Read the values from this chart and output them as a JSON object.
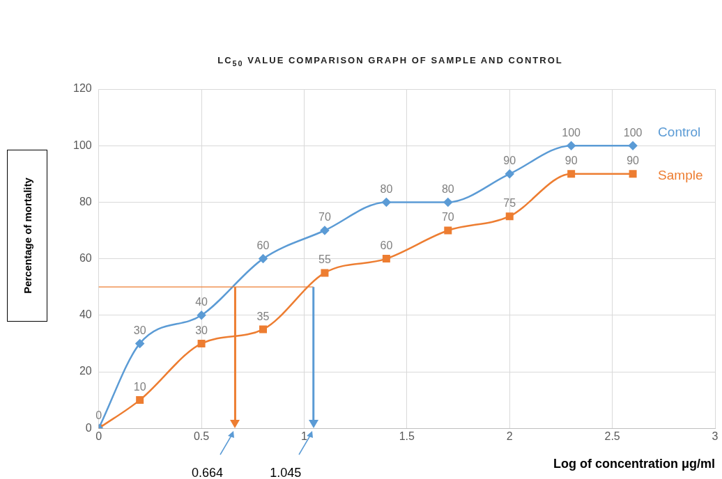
{
  "chart_data": {
    "type": "line",
    "title": "LC$_{50}$ VALUE COMPARISON GRAPH OF SAMPLE AND CONTROL",
    "xlabel": "Log of concentration μg/ml",
    "ylabel": "Percentage of mortality",
    "x": [
      0,
      0.2,
      0.5,
      0.8,
      1.1,
      1.4,
      1.7,
      2.0,
      2.3,
      2.6
    ],
    "series": [
      {
        "name": "Control",
        "color": "#5b9bd5",
        "marker": "diamond",
        "values": [
          0,
          30,
          40,
          60,
          70,
          80,
          80,
          90,
          100,
          100
        ],
        "value_labels": [
          "0",
          "30",
          "40",
          "60",
          "70",
          "80",
          "80",
          "90",
          "100",
          "100"
        ]
      },
      {
        "name": "Sample",
        "color": "#ed7d31",
        "marker": "square",
        "values": [
          0,
          10,
          30,
          35,
          55,
          60,
          70,
          75,
          90,
          90
        ],
        "value_labels": [
          null,
          "10",
          "30",
          "35",
          "55",
          "60",
          "70",
          "75",
          "90",
          "90"
        ]
      }
    ],
    "xlim": [
      0,
      3
    ],
    "xticks": [
      0,
      0.5,
      1,
      1.5,
      2,
      2.5,
      3
    ],
    "ylim": [
      0,
      120
    ],
    "yticks": [
      0,
      20,
      40,
      60,
      80,
      100,
      120
    ],
    "grid": true,
    "legend": false,
    "ref_lines": [
      {
        "axis": "y",
        "value": 50,
        "color": "#ed7d31"
      },
      {
        "axis": "x",
        "value": 0.664,
        "color": "#ed7d31"
      },
      {
        "axis": "x",
        "value": 1.045,
        "color": "#5b9bd5"
      }
    ],
    "annotations": [
      "0.664",
      "1.045"
    ]
  }
}
